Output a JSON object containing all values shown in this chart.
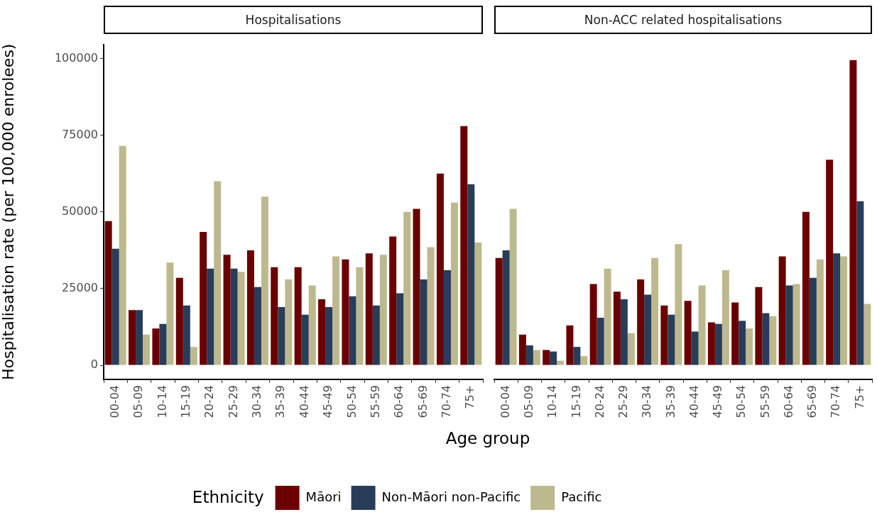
{
  "chart_data": [
    {
      "type": "bar",
      "title": "Hospitalisations",
      "xlabel": "Age group",
      "ylabel": "Hospitalisation rate (per 100,000 enrolees)",
      "legend_title": "Ethnicity",
      "legend": "bottom",
      "categories": [
        "00-04",
        "05-09",
        "10-14",
        "15-19",
        "20-24",
        "25-29",
        "30-34",
        "35-39",
        "40-44",
        "45-49",
        "50-54",
        "55-59",
        "60-64",
        "65-69",
        "70-74",
        "75+"
      ],
      "ylim": [
        -4600,
        104600
      ],
      "yticks": [
        0,
        25000,
        50000,
        75000,
        100000
      ],
      "series": [
        {
          "name": "Māori",
          "color": "#6b0000",
          "values": [
            47000,
            18000,
            12000,
            28500,
            43500,
            36000,
            37500,
            32000,
            32000,
            21500,
            34500,
            36500,
            42000,
            51000,
            62500,
            78000
          ]
        },
        {
          "name": "Non-Māori non-Pacific",
          "color": "#283d5a",
          "values": [
            38000,
            18000,
            13500,
            19500,
            31500,
            31500,
            25500,
            19000,
            16500,
            19000,
            22500,
            19500,
            23500,
            28000,
            31000,
            59000
          ]
        },
        {
          "name": "Pacific",
          "color": "#bdb98e",
          "values": [
            71500,
            10000,
            33500,
            6000,
            60000,
            30500,
            55000,
            28000,
            26000,
            35500,
            32000,
            36000,
            50000,
            38500,
            53000,
            40000
          ]
        }
      ]
    },
    {
      "type": "bar",
      "title": "Non-ACC related hospitalisations",
      "tick_labels": "x",
      "categories": [
        "00-04",
        "05-09",
        "10-14",
        "15-19",
        "20-24",
        "25-29",
        "30-34",
        "35-39",
        "40-44",
        "45-49",
        "50-54",
        "55-59",
        "60-64",
        "65-69",
        "70-74",
        "75+"
      ],
      "yticks": [
        0,
        25000,
        50000,
        75000,
        100000
      ],
      "series": [
        {
          "color": "#6b0000",
          "values": [
            35000,
            10000,
            5000,
            13000,
            26500,
            24000,
            28000,
            19500,
            21000,
            14000,
            20500,
            25500,
            35500,
            50000,
            67000,
            99500
          ]
        },
        {
          "color": "#283d5a",
          "values": [
            37500,
            6500,
            4500,
            6000,
            15500,
            21500,
            23000,
            16500,
            11000,
            13500,
            14500,
            17000,
            26000,
            28500,
            36500,
            53500
          ]
        },
        {
          "color": "#bdb98e",
          "values": [
            51000,
            5000,
            1500,
            3000,
            31500,
            10500,
            35000,
            39500,
            26000,
            31000,
            12000,
            16000,
            26500,
            34500,
            35500,
            20000
          ]
        }
      ]
    }
  ]
}
